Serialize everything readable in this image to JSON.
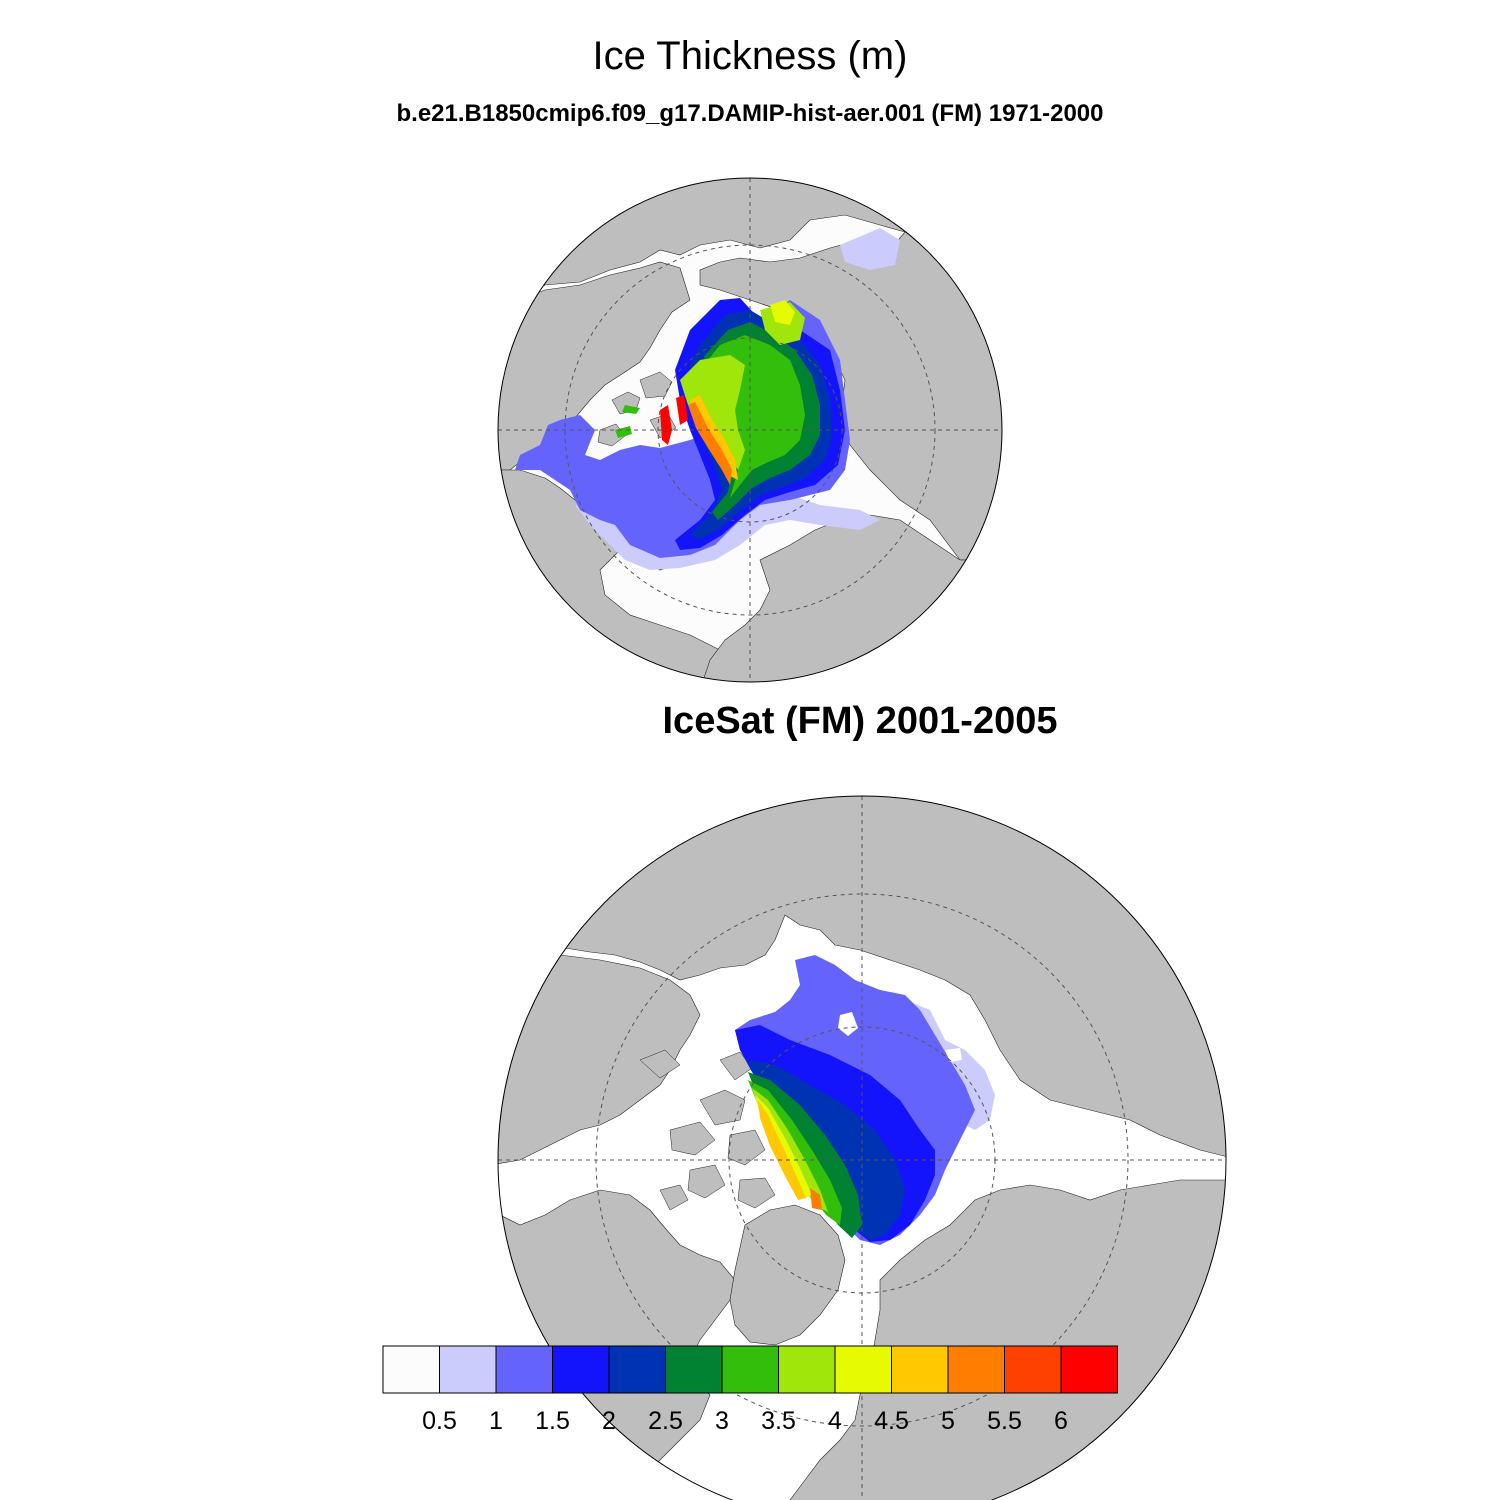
{
  "figure": {
    "title": "Ice Thickness (m)",
    "panels": [
      {
        "subtitle": "b.e21.B1850cmip6.f09_g17.DAMIP-hist-aer.001 (FM) 1971-2000"
      },
      {
        "subtitle": "IceSat (FM) 2001-2005"
      }
    ]
  },
  "colors": {
    "land": "#bebebe",
    "ocean": "#fcfcfc",
    "graticule": "#555555"
  },
  "colorbar": {
    "labels": [
      "0.5",
      "1",
      "1.5",
      "2",
      "2.5",
      "3",
      "3.5",
      "4",
      "4.5",
      "5",
      "5.5",
      "6"
    ],
    "colors": [
      "#fcfcfc",
      "#ccccfc",
      "#6464fc",
      "#1414fc",
      "#0032b4",
      "#008232",
      "#32be0a",
      "#a0e60a",
      "#e6fa00",
      "#ffc800",
      "#ff7d00",
      "#ff4100",
      "#ff0000"
    ]
  },
  "chart_data": {
    "type": "polar-stereographic contour map",
    "levels": [
      0.5,
      1,
      1.5,
      2,
      2.5,
      3,
      3.5,
      4,
      4.5,
      5,
      5.5,
      6
    ],
    "units": "m"
  }
}
